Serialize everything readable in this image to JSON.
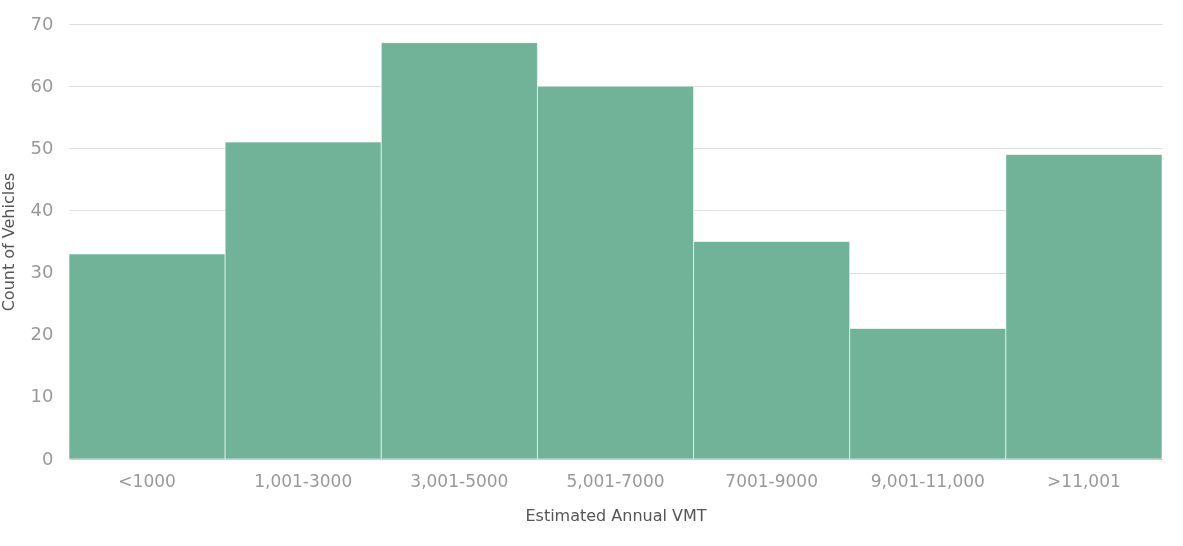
{
  "chart_data": {
    "type": "bar",
    "xlabel": "Estimated Annual VMT",
    "ylabel": "Count of Vehicles",
    "categories": [
      "<1000",
      "1,001-3000",
      "3,001-5000",
      "5,001-7000",
      "7001-9000",
      "9,001-11,000",
      ">11,001"
    ],
    "values": [
      33,
      51,
      67,
      60,
      35,
      21,
      49
    ],
    "color": "#71b398",
    "ylim": [
      0,
      70
    ],
    "yticks": [
      0,
      10,
      20,
      30,
      40,
      50,
      60,
      70
    ],
    "grid": "y"
  }
}
